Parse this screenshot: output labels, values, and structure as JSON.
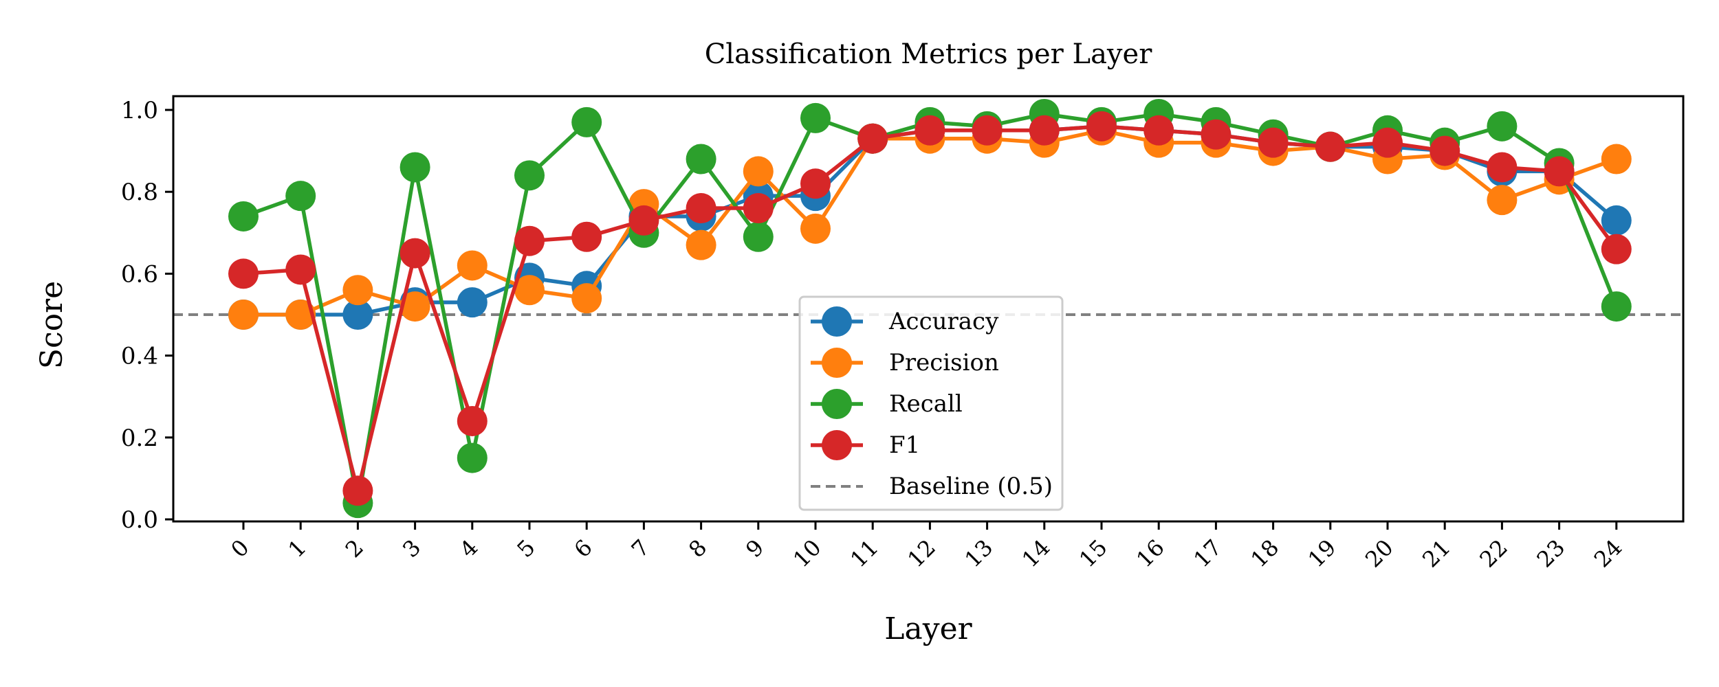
{
  "chart_data": {
    "type": "line",
    "title": "Classification Metrics per Layer",
    "xlabel": "Layer",
    "ylabel": "Score",
    "ylim": [
      0.0,
      1.03
    ],
    "yticks": [
      "0.0",
      "0.2",
      "0.4",
      "0.6",
      "0.8",
      "1.0"
    ],
    "ytick_values": [
      0.0,
      0.2,
      0.4,
      0.6,
      0.8,
      1.0
    ],
    "categories": [
      "0",
      "1",
      "2",
      "3",
      "4",
      "5",
      "6",
      "7",
      "8",
      "9",
      "10",
      "11",
      "12",
      "13",
      "14",
      "15",
      "16",
      "17",
      "18",
      "19",
      "20",
      "21",
      "22",
      "23",
      "24"
    ],
    "grid": false,
    "legend_position": "lower-center",
    "baseline": {
      "name": "Baseline (0.5)",
      "value": 0.5,
      "color": "#808080"
    },
    "series": [
      {
        "name": "Accuracy",
        "color": "#1f77b4",
        "values": [
          0.5,
          0.5,
          0.5,
          0.53,
          0.53,
          0.59,
          0.57,
          0.74,
          0.74,
          0.79,
          0.79,
          0.93,
          0.95,
          0.95,
          0.95,
          0.96,
          0.95,
          0.94,
          0.92,
          0.91,
          0.91,
          0.9,
          0.85,
          0.85,
          0.73
        ]
      },
      {
        "name": "Precision",
        "color": "#ff7f0e",
        "values": [
          0.5,
          0.5,
          0.56,
          0.52,
          0.62,
          0.56,
          0.54,
          0.77,
          0.67,
          0.85,
          0.71,
          0.93,
          0.93,
          0.93,
          0.92,
          0.95,
          0.92,
          0.92,
          0.9,
          0.91,
          0.88,
          0.89,
          0.78,
          0.83,
          0.88
        ]
      },
      {
        "name": "Recall",
        "color": "#2ca02c",
        "values": [
          0.74,
          0.79,
          0.04,
          0.86,
          0.15,
          0.84,
          0.97,
          0.7,
          0.88,
          0.69,
          0.98,
          0.93,
          0.97,
          0.96,
          0.99,
          0.97,
          0.99,
          0.97,
          0.94,
          0.91,
          0.95,
          0.92,
          0.96,
          0.87,
          0.52
        ]
      },
      {
        "name": "F1",
        "color": "#d62728",
        "values": [
          0.6,
          0.61,
          0.07,
          0.65,
          0.24,
          0.68,
          0.69,
          0.73,
          0.76,
          0.76,
          0.82,
          0.93,
          0.95,
          0.95,
          0.95,
          0.96,
          0.95,
          0.94,
          0.92,
          0.91,
          0.92,
          0.9,
          0.86,
          0.85,
          0.66
        ]
      }
    ]
  }
}
